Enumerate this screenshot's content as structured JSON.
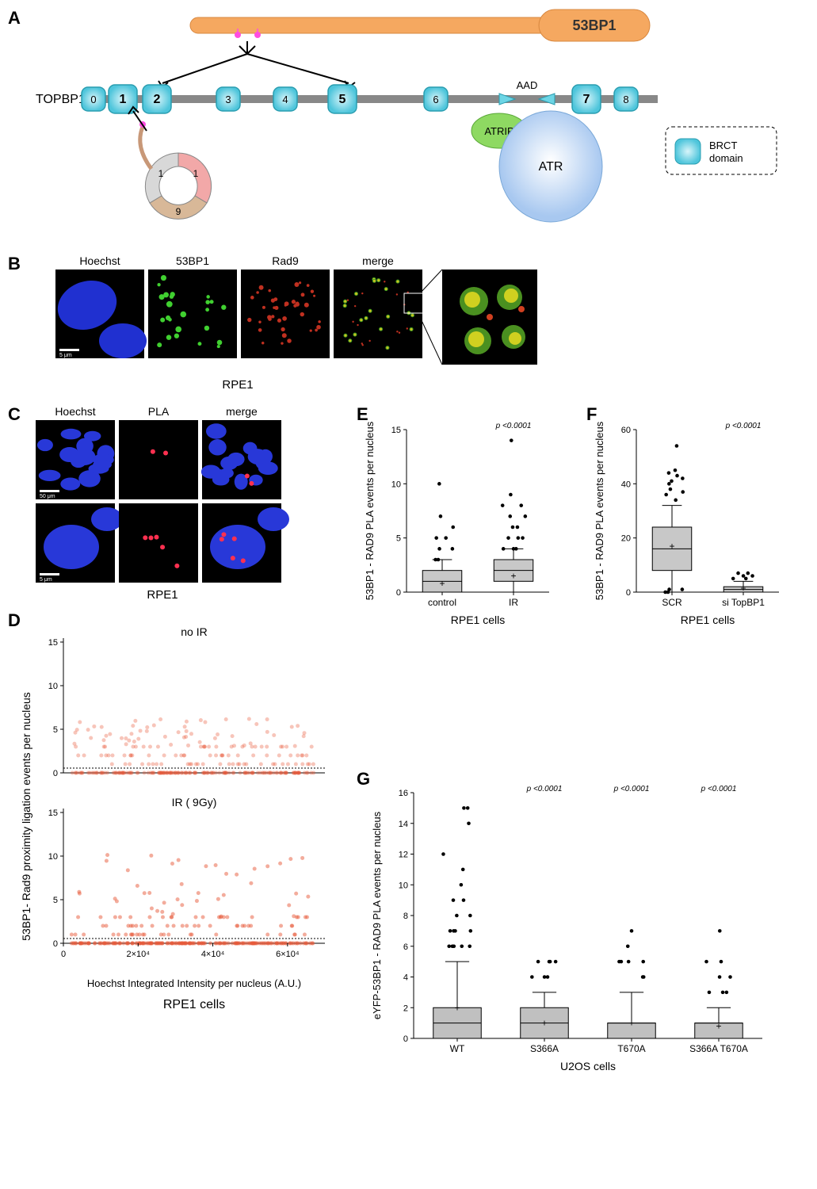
{
  "panelA": {
    "label": "A",
    "protein53BP1": "53BP1",
    "topbp1": "TOPBP1",
    "brct_label": "BRCT\ndomain",
    "brct_boxes": [
      "0",
      "1",
      "2",
      "3",
      "4",
      "5",
      "6",
      "7",
      "8"
    ],
    "aad": "AAD",
    "atrip": "ATRIP",
    "atr": "ATR",
    "ring_labels": [
      "1",
      "9",
      "1"
    ],
    "colors": {
      "bar53bp1": "#f5a860",
      "brct_fill": "#6dd5e5",
      "brct_stroke": "#2a9db0",
      "atrip": "#8ed962",
      "atr": "#a8c8f0",
      "magenta": "#ff4de0"
    }
  },
  "panelB": {
    "label": "B",
    "headers": [
      "Hoechst",
      "53BP1",
      "Rad9",
      "merge"
    ],
    "cell_line": "RPE1",
    "scale": "5 μm"
  },
  "panelC": {
    "label": "C",
    "headers": [
      "Hoechst",
      "PLA",
      "merge"
    ],
    "cell_line": "RPE1",
    "scale_top": "50 μm",
    "scale_bot": "5 μm"
  },
  "panelD": {
    "label": "D",
    "ylabel": "53BP1- Rad9 proximity ligation events per nucleus",
    "xlabel": "Hoechst Integrated Intensity per nucleus (A.U.)",
    "sub_title_top": "no IR",
    "sub_title_bot": "IR ( 9Gy)",
    "xticks": [
      "0",
      "2×10⁴",
      "4×10⁴",
      "6×10⁴"
    ],
    "xvals": [
      0,
      20000,
      40000,
      60000
    ],
    "yticks": [
      "0",
      "5",
      "10",
      "15"
    ],
    "yvals": [
      0,
      5,
      10,
      15
    ],
    "cell_line": "RPE1 cells",
    "dot_color": "#e85a3a"
  },
  "panelE": {
    "label": "E",
    "ylabel": "53BP1 - RAD9 PLA events per nucleus",
    "yticks": [
      "0",
      "5",
      "10",
      "15"
    ],
    "yvals": [
      0,
      5,
      10,
      15
    ],
    "categories": [
      "control",
      "IR"
    ],
    "boxes": [
      {
        "q1": 0,
        "median": 1,
        "q3": 2,
        "whisker_low": 0,
        "whisker_high": 3,
        "mean": 0.8
      },
      {
        "q1": 1,
        "median": 2,
        "q3": 3,
        "whisker_low": 0,
        "whisker_high": 4,
        "mean": 1.5
      }
    ],
    "outliers": [
      [
        3,
        3,
        4,
        4,
        5,
        5,
        6,
        7,
        10
      ],
      [
        4,
        4,
        4,
        5,
        5,
        5,
        6,
        6,
        7,
        7,
        8,
        8,
        9,
        14
      ]
    ],
    "pval": "p <0.0001",
    "cell_line": "RPE1 cells",
    "box_fill": "#c8c8c8"
  },
  "panelF": {
    "label": "F",
    "ylabel": "53BP1 - RAD9 PLA events per nucleus",
    "yticks": [
      "0",
      "20",
      "40",
      "60"
    ],
    "yvals": [
      0,
      20,
      40,
      60
    ],
    "categories": [
      "SCR",
      "si TopBP1"
    ],
    "boxes": [
      {
        "q1": 8,
        "median": 16,
        "q3": 24,
        "whisker_low": 0,
        "whisker_high": 32,
        "mean": 17
      },
      {
        "q1": 0,
        "median": 1,
        "q3": 2,
        "whisker_low": 0,
        "whisker_high": 4,
        "mean": 1.5
      }
    ],
    "outliers": [
      [
        0,
        0,
        1,
        1,
        34,
        36,
        37,
        38,
        40,
        41,
        42,
        43,
        44,
        45,
        54
      ],
      [
        5,
        5,
        6,
        6,
        7,
        7
      ]
    ],
    "pval": "p <0.0001",
    "cell_line": "RPE1 cells",
    "box_fill": "#c8c8c8"
  },
  "panelG": {
    "label": "G",
    "ylabel": "eYFP-53BP1 - RAD9 PLA events per nucleus",
    "yticks": [
      "0",
      "2",
      "4",
      "6",
      "8",
      "10",
      "12",
      "14",
      "16"
    ],
    "yvals": [
      0,
      2,
      4,
      6,
      8,
      10,
      12,
      14,
      16
    ],
    "categories": [
      "WT",
      "S366A",
      "T670A",
      "S366A T670A"
    ],
    "boxes": [
      {
        "q1": 0,
        "median": 1,
        "q3": 2,
        "whisker_low": 0,
        "whisker_high": 5,
        "mean": 2
      },
      {
        "q1": 0,
        "median": 1,
        "q3": 2,
        "whisker_low": 0,
        "whisker_high": 3,
        "mean": 1
      },
      {
        "q1": 0,
        "median": 1,
        "q3": 1,
        "whisker_low": 0,
        "whisker_high": 3,
        "mean": 1
      },
      {
        "q1": 0,
        "median": 1,
        "q3": 1,
        "whisker_low": 0,
        "whisker_high": 2,
        "mean": 0.8
      }
    ],
    "outliers": [
      [
        6,
        6,
        6,
        6,
        6,
        7,
        7,
        7,
        7,
        8,
        8,
        9,
        9,
        10,
        11,
        12,
        14,
        15,
        15
      ],
      [
        4,
        4,
        4,
        5,
        5,
        5,
        5
      ],
      [
        4,
        4,
        5,
        5,
        5,
        5,
        6,
        7
      ],
      [
        3,
        3,
        3,
        4,
        4,
        5,
        5,
        7
      ]
    ],
    "pvals": [
      "",
      "p <0.0001",
      "p <0.0001",
      "p <0.0001"
    ],
    "cell_line": "U2OS cells",
    "box_fill": "#c0c0c0"
  }
}
